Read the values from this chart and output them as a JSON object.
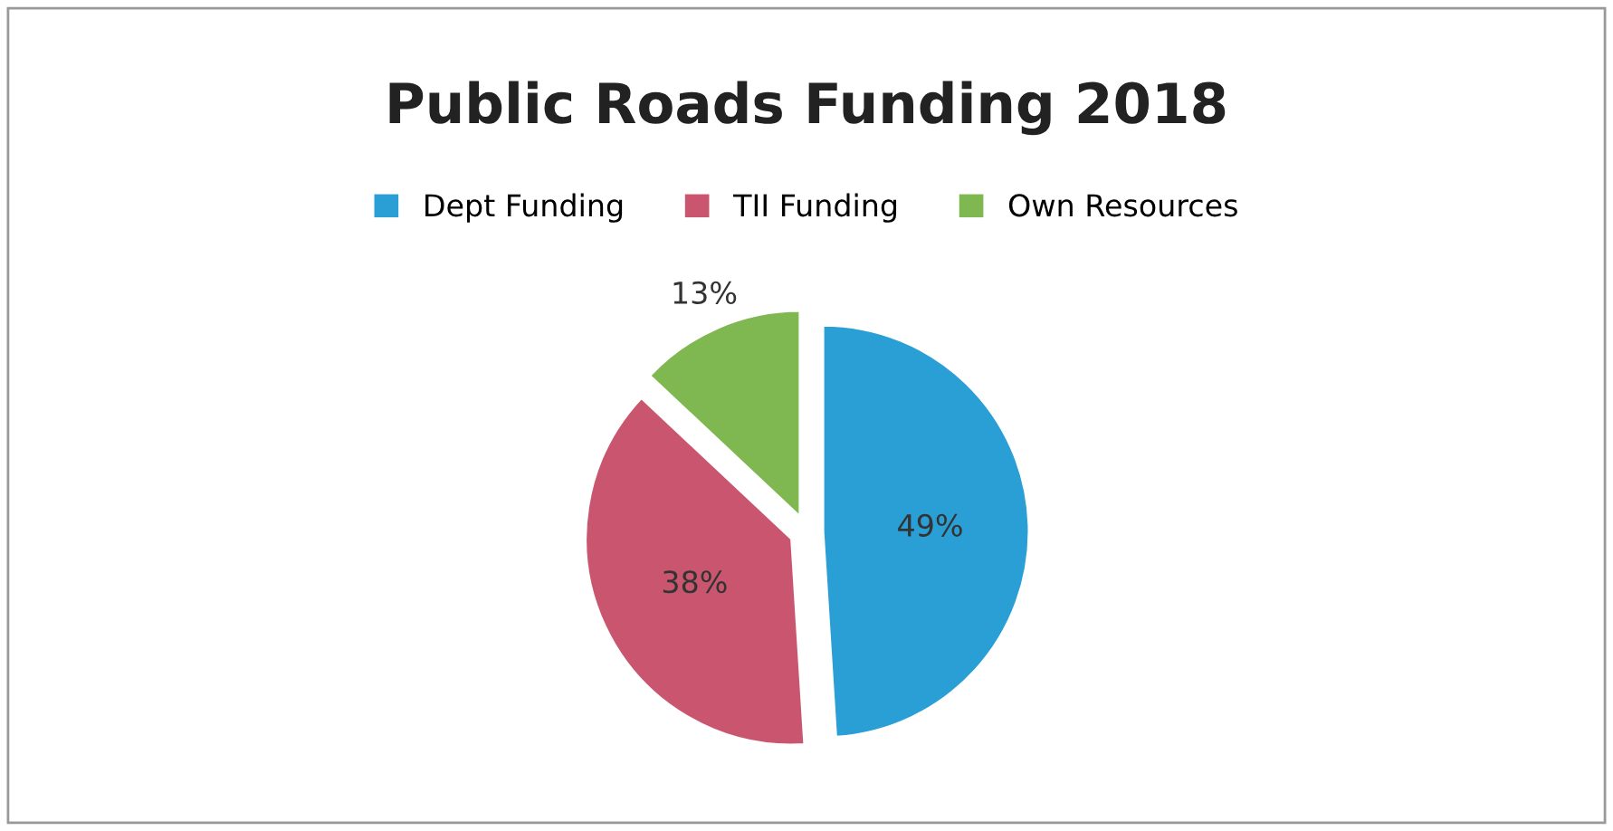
{
  "chart_data": {
    "type": "pie",
    "title": "Public Roads Funding 2018",
    "categories": [
      "Dept Funding",
      "TII Funding",
      "Own Resources"
    ],
    "values": [
      49,
      38,
      13
    ],
    "colors": [
      "#2a9fd6",
      "#c9566e",
      "#7fb850"
    ],
    "value_labels": [
      "49%",
      "38%",
      "13%"
    ],
    "legend": "top"
  }
}
